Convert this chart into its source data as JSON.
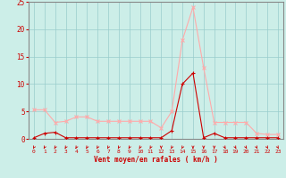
{
  "x": [
    0,
    1,
    2,
    3,
    4,
    5,
    6,
    7,
    8,
    9,
    10,
    11,
    12,
    13,
    14,
    15,
    16,
    17,
    18,
    19,
    20,
    21,
    22,
    23
  ],
  "y_dark": [
    0.2,
    1.0,
    1.2,
    0.2,
    0.2,
    0.2,
    0.2,
    0.2,
    0.2,
    0.2,
    0.2,
    0.2,
    0.2,
    1.5,
    10.0,
    12.0,
    0.2,
    1.0,
    0.2,
    0.2,
    0.2,
    0.2,
    0.2,
    0.2
  ],
  "y_light": [
    5.3,
    5.3,
    3.0,
    3.2,
    4.0,
    4.0,
    3.2,
    3.2,
    3.2,
    3.2,
    3.2,
    3.2,
    2.0,
    5.0,
    18.0,
    24.0,
    13.0,
    3.0,
    3.0,
    3.0,
    3.0,
    1.0,
    0.8,
    0.8
  ],
  "color_dark": "#cc0000",
  "color_light": "#ffaaaa",
  "bg_color": "#cceee8",
  "grid_color_major": "#99cccc",
  "grid_color_minor": "#bbdddd",
  "xlabel": "Vent moyen/en rafales ( km/h )",
  "xlabel_color": "#cc0000",
  "tick_color": "#cc0000",
  "spine_color": "#888888",
  "xlim_min": -0.5,
  "xlim_max": 23.5,
  "ylim_min": 0,
  "ylim_max": 25,
  "yticks": [
    0,
    5,
    10,
    15,
    20,
    25
  ],
  "xticks": [
    0,
    1,
    2,
    3,
    4,
    5,
    6,
    7,
    8,
    9,
    10,
    11,
    12,
    13,
    14,
    15,
    16,
    17,
    18,
    19,
    20,
    21,
    22,
    23
  ],
  "arrow_angles_deg": [
    225,
    225,
    225,
    225,
    225,
    225,
    225,
    225,
    225,
    225,
    225,
    225,
    90,
    225,
    225,
    90,
    90,
    90,
    45,
    45,
    45,
    45,
    45,
    45
  ]
}
